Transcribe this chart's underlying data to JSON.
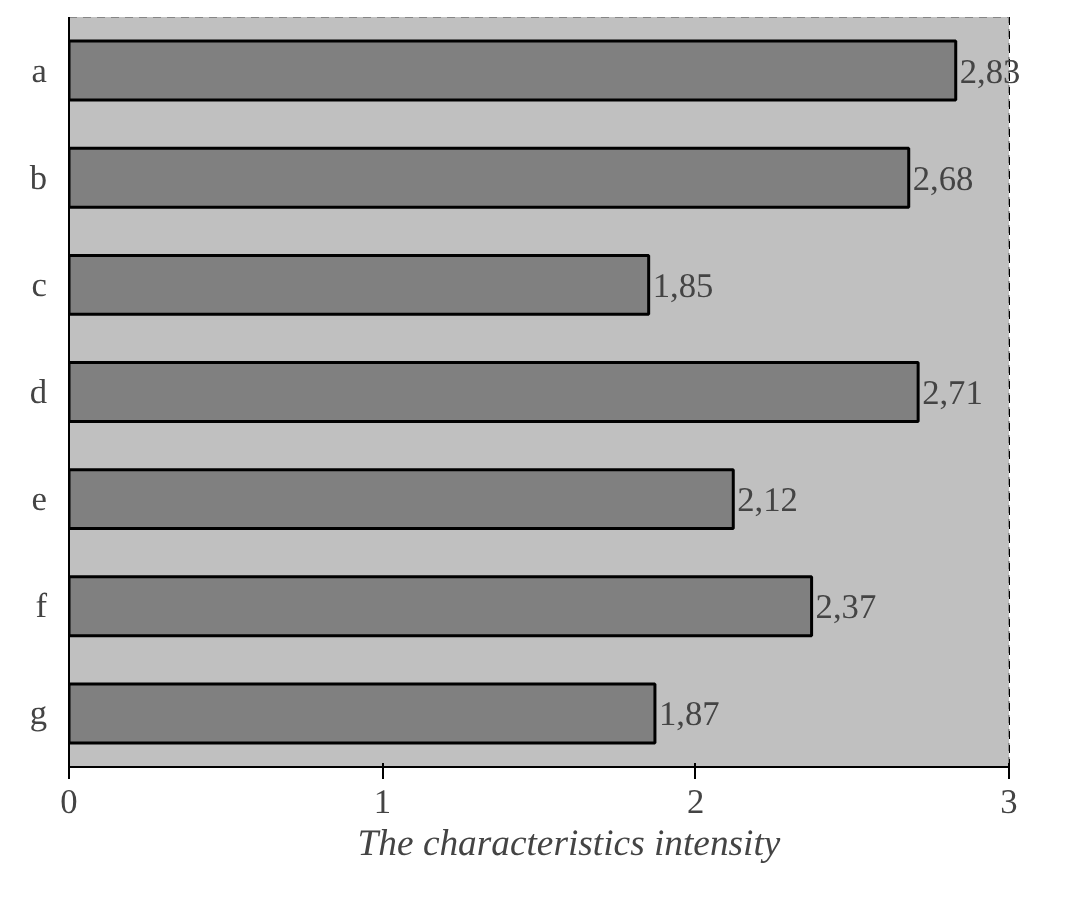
{
  "chart_data": {
    "type": "bar",
    "orientation": "horizontal",
    "xlabel": "The characteristics intensity",
    "categories": [
      "a",
      "b",
      "c",
      "d",
      "e",
      "f",
      "g"
    ],
    "values": [
      2.83,
      2.68,
      1.85,
      2.71,
      2.12,
      2.37,
      1.87
    ],
    "value_labels": [
      "2,83",
      "2,68",
      "1,85",
      "2,71",
      "2,12",
      "2,37",
      "1,87"
    ],
    "color": "#808080",
    "xlim": [
      0,
      3
    ],
    "xticks": [
      0,
      1,
      2,
      3
    ],
    "grid": "x"
  }
}
